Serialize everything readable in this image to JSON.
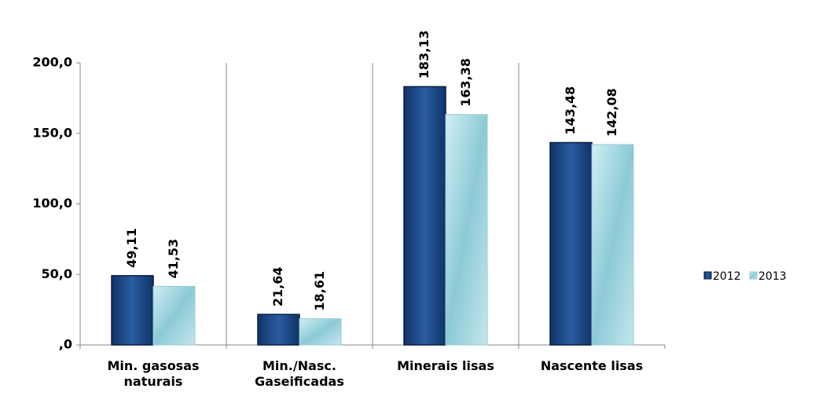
{
  "chart_data": {
    "type": "bar",
    "categories": [
      "Min. gasosas naturais",
      "Min./Nasc. Gaseificadas",
      "Minerais lisas",
      "Nascente lisas"
    ],
    "series": [
      {
        "name": "2012",
        "color": "#1b4a88",
        "values": [
          49.11,
          21.64,
          183.13,
          143.48
        ],
        "value_labels": [
          "49,11",
          "21,64",
          "183,13",
          "143,48"
        ]
      },
      {
        "name": "2013",
        "color": "#a6d6df",
        "values": [
          41.53,
          18.61,
          163.38,
          142.08
        ],
        "value_labels": [
          "41,53",
          "18,61",
          "163,38",
          "142,08"
        ]
      }
    ],
    "ylim": [
      0,
      200
    ],
    "yticks": [
      {
        "value": 0,
        "label": ",0"
      },
      {
        "value": 50,
        "label": "50,0"
      },
      {
        "value": 100,
        "label": "100,0"
      },
      {
        "value": 150,
        "label": "150,0"
      },
      {
        "value": 200,
        "label": "200,0"
      }
    ],
    "legend": "right"
  }
}
